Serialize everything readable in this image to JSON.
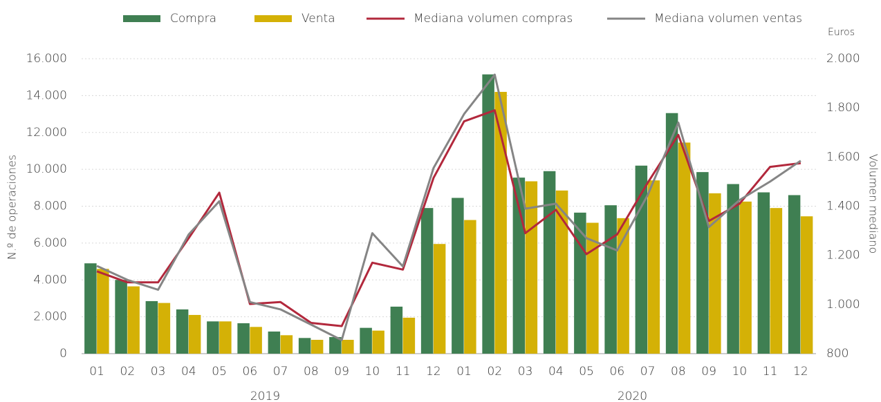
{
  "chart_data": {
    "type": "bar",
    "y_label": "N.º de operaciones",
    "y2_label": "Volumen mediano",
    "y2_unit": "Euros",
    "categories": [
      "01",
      "02",
      "03",
      "04",
      "05",
      "06",
      "07",
      "08",
      "09",
      "10",
      "11",
      "12",
      "01",
      "02",
      "03",
      "04",
      "05",
      "06",
      "07",
      "08",
      "09",
      "10",
      "11",
      "12"
    ],
    "groups": [
      "2019",
      "2020"
    ],
    "series": [
      {
        "name": "Compra",
        "type": "bar",
        "color": "#3f7f52",
        "values": [
          4900,
          4000,
          2850,
          2400,
          1750,
          1650,
          1200,
          850,
          900,
          1400,
          2550,
          7900,
          8450,
          15150,
          9550,
          9900,
          7650,
          8050,
          10200,
          13050,
          9850,
          9200,
          8750,
          8600
        ]
      },
      {
        "name": "Venta",
        "type": "bar",
        "color": "#d4b106",
        "values": [
          4600,
          3650,
          2750,
          2100,
          1750,
          1450,
          1000,
          750,
          750,
          1250,
          1950,
          5950,
          7250,
          14200,
          9350,
          8850,
          7100,
          7350,
          9400,
          11450,
          8700,
          8250,
          7900,
          7450
        ]
      },
      {
        "name": "Mediana volumen compras",
        "type": "line",
        "axis": "y2",
        "color": "#b2283c",
        "values": [
          1135,
          1090,
          1090,
          1270,
          1455,
          1002,
          1010,
          925,
          912,
          1170,
          1142,
          1515,
          1745,
          1790,
          1290,
          1385,
          1205,
          1285,
          1495,
          1690,
          1340,
          1410,
          1560,
          1575
        ]
      },
      {
        "name": "Mediana volumen ventas",
        "type": "line",
        "axis": "y2",
        "color": "#858585",
        "values": [
          1157,
          1100,
          1060,
          1285,
          1420,
          1010,
          980,
          918,
          855,
          1290,
          1155,
          1555,
          1775,
          1935,
          1390,
          1410,
          1270,
          1220,
          1445,
          1740,
          1315,
          1425,
          1500,
          1585
        ]
      }
    ],
    "ylim": [
      0,
      16000
    ],
    "yticks": [
      0,
      {
        "value": 2000,
        "label": "2.000"
      },
      {
        "value": 4000,
        "label": "4.000"
      },
      {
        "value": 6000,
        "label": "6.000"
      },
      {
        "value": 8000,
        "label": "8.000"
      },
      {
        "value": 10000,
        "label": "10.000"
      },
      {
        "value": 12000,
        "label": "12.000"
      },
      {
        "value": 14000,
        "label": "14.000"
      },
      {
        "value": 16000,
        "label": "16.000"
      }
    ],
    "y2lim": [
      800,
      2000
    ],
    "y2ticks": [
      800,
      {
        "value": 1000,
        "label": "1.000"
      },
      {
        "value": 1200,
        "label": "1.200"
      },
      {
        "value": 1400,
        "label": "1.400"
      },
      {
        "value": 1600,
        "label": "1.600"
      },
      {
        "value": 1800,
        "label": "1.800"
      },
      {
        "value": 2000,
        "label": "2.000"
      }
    ],
    "grid": true,
    "legend": "top"
  }
}
